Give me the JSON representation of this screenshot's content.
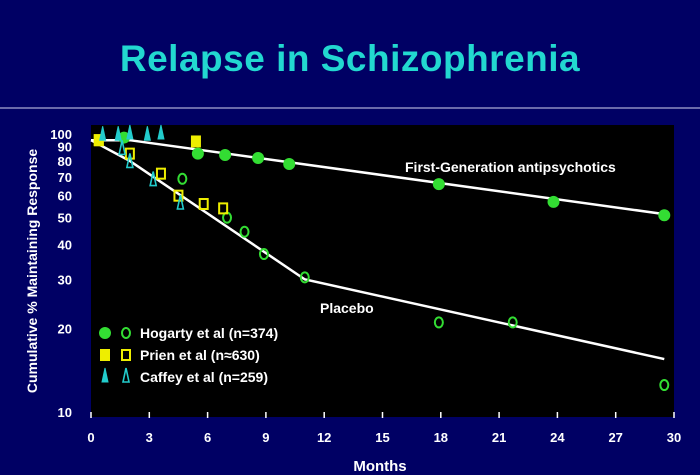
{
  "title": "Relapse in Schizophrenia",
  "colors": {
    "background": "#000064",
    "title": "#22d8d0",
    "hogarty": "#33dd33",
    "prien": "#eeee00",
    "caffey": "#22cccc",
    "line": "#ffffff"
  },
  "chart_data": {
    "type": "line",
    "xlabel": "Months",
    "ylabel": "Cumulative % Maintaining Response",
    "x_ticks": [
      "0",
      "3",
      "6",
      "9",
      "12",
      "15",
      "18",
      "21",
      "24",
      "27",
      "30"
    ],
    "y_ticks": [
      "10",
      "20",
      "30",
      "40",
      "50",
      "60",
      "70",
      "80",
      "90",
      "100"
    ],
    "xlim": [
      0,
      30
    ],
    "ylim": [
      10,
      100
    ],
    "y_scale": "log",
    "grid": false,
    "curves": [
      {
        "label": "First-Generation antipsychotics",
        "points": [
          [
            0,
            95
          ],
          [
            2,
            95
          ],
          [
            29.5,
            51.5
          ]
        ]
      },
      {
        "label": "Placebo",
        "points": [
          [
            0,
            95
          ],
          [
            2,
            80
          ],
          [
            11,
            30
          ],
          [
            29.5,
            15.5
          ]
        ]
      }
    ],
    "legend": [
      {
        "label": "Hogarty et al (n=374)",
        "marker": "circle"
      },
      {
        "label": "Prien et al (n≈630)",
        "marker": "square"
      },
      {
        "label": "Caffey et al (n=259)",
        "marker": "triangle"
      }
    ],
    "series": [
      {
        "name": "Hogarty et al (n=374) – drug",
        "marker": "circle",
        "fill": "filled",
        "x": [
          1.7,
          5.5,
          6.9,
          8.6,
          10.2,
          17.9,
          23.8,
          29.5
        ],
        "y": [
          97,
          85,
          84,
          82,
          78,
          66,
          57,
          51
        ]
      },
      {
        "name": "Hogarty et al (n=374) – placebo",
        "marker": "circle",
        "fill": "open",
        "x": [
          4.7,
          7,
          7.9,
          8.9,
          11,
          17.9,
          21.7,
          29.5
        ],
        "y": [
          69,
          50,
          44.5,
          37,
          30.5,
          21,
          21,
          12.5
        ]
      },
      {
        "name": "Prien et al (n≈630) – drug",
        "marker": "square",
        "fill": "filled",
        "x": [
          0.4,
          5.4
        ],
        "y": [
          95,
          94
        ]
      },
      {
        "name": "Prien et al (n≈630) – placebo",
        "marker": "square",
        "fill": "open",
        "x": [
          0.4,
          2,
          3.6,
          4.5,
          5.8,
          6.8
        ],
        "y": [
          95,
          85,
          72,
          60,
          56,
          54
        ]
      },
      {
        "name": "Caffey et al (n=259) – drug",
        "marker": "triangle",
        "fill": "filled",
        "x": [
          0.6,
          1.4,
          2,
          2.9,
          3.6
        ],
        "y": [
          99,
          99,
          100,
          99,
          100
        ]
      },
      {
        "name": "Caffey et al (n=259) – placebo",
        "marker": "triangle",
        "fill": "open",
        "x": [
          1.6,
          2,
          3.2,
          4.6
        ],
        "y": [
          88,
          79,
          68,
          56
        ]
      }
    ]
  }
}
